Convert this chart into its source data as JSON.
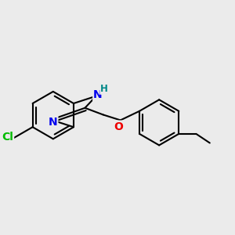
{
  "bg_color": "#ebebeb",
  "bond_color": "#000000",
  "bond_width": 1.5,
  "atom_colors": {
    "N": "#0000ee",
    "O": "#ee0000",
    "Cl": "#00bb00",
    "H": "#008888",
    "C": "#000000"
  },
  "font_size_atom": 10,
  "font_size_H": 8.5
}
